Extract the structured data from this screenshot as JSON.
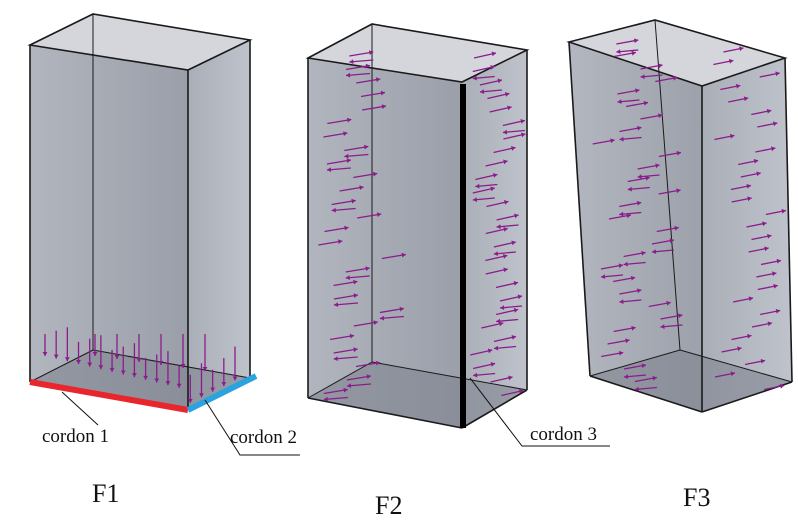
{
  "figures": [
    {
      "id": "F1",
      "label": "F1"
    },
    {
      "id": "F2",
      "label": "F2"
    },
    {
      "id": "F3",
      "label": "F3"
    }
  ],
  "callouts": {
    "cordon1": "cordon 1",
    "cordon2": "cordon 2",
    "cordon3": "cordon 3"
  },
  "colors": {
    "box_face": "#9ea3ae",
    "box_edge": "#1a1a1a",
    "force_arrow": "#8b1c8b",
    "cordon1": "#e8262c",
    "cordon2": "#2aa3e0",
    "cordon3": "#000000"
  }
}
